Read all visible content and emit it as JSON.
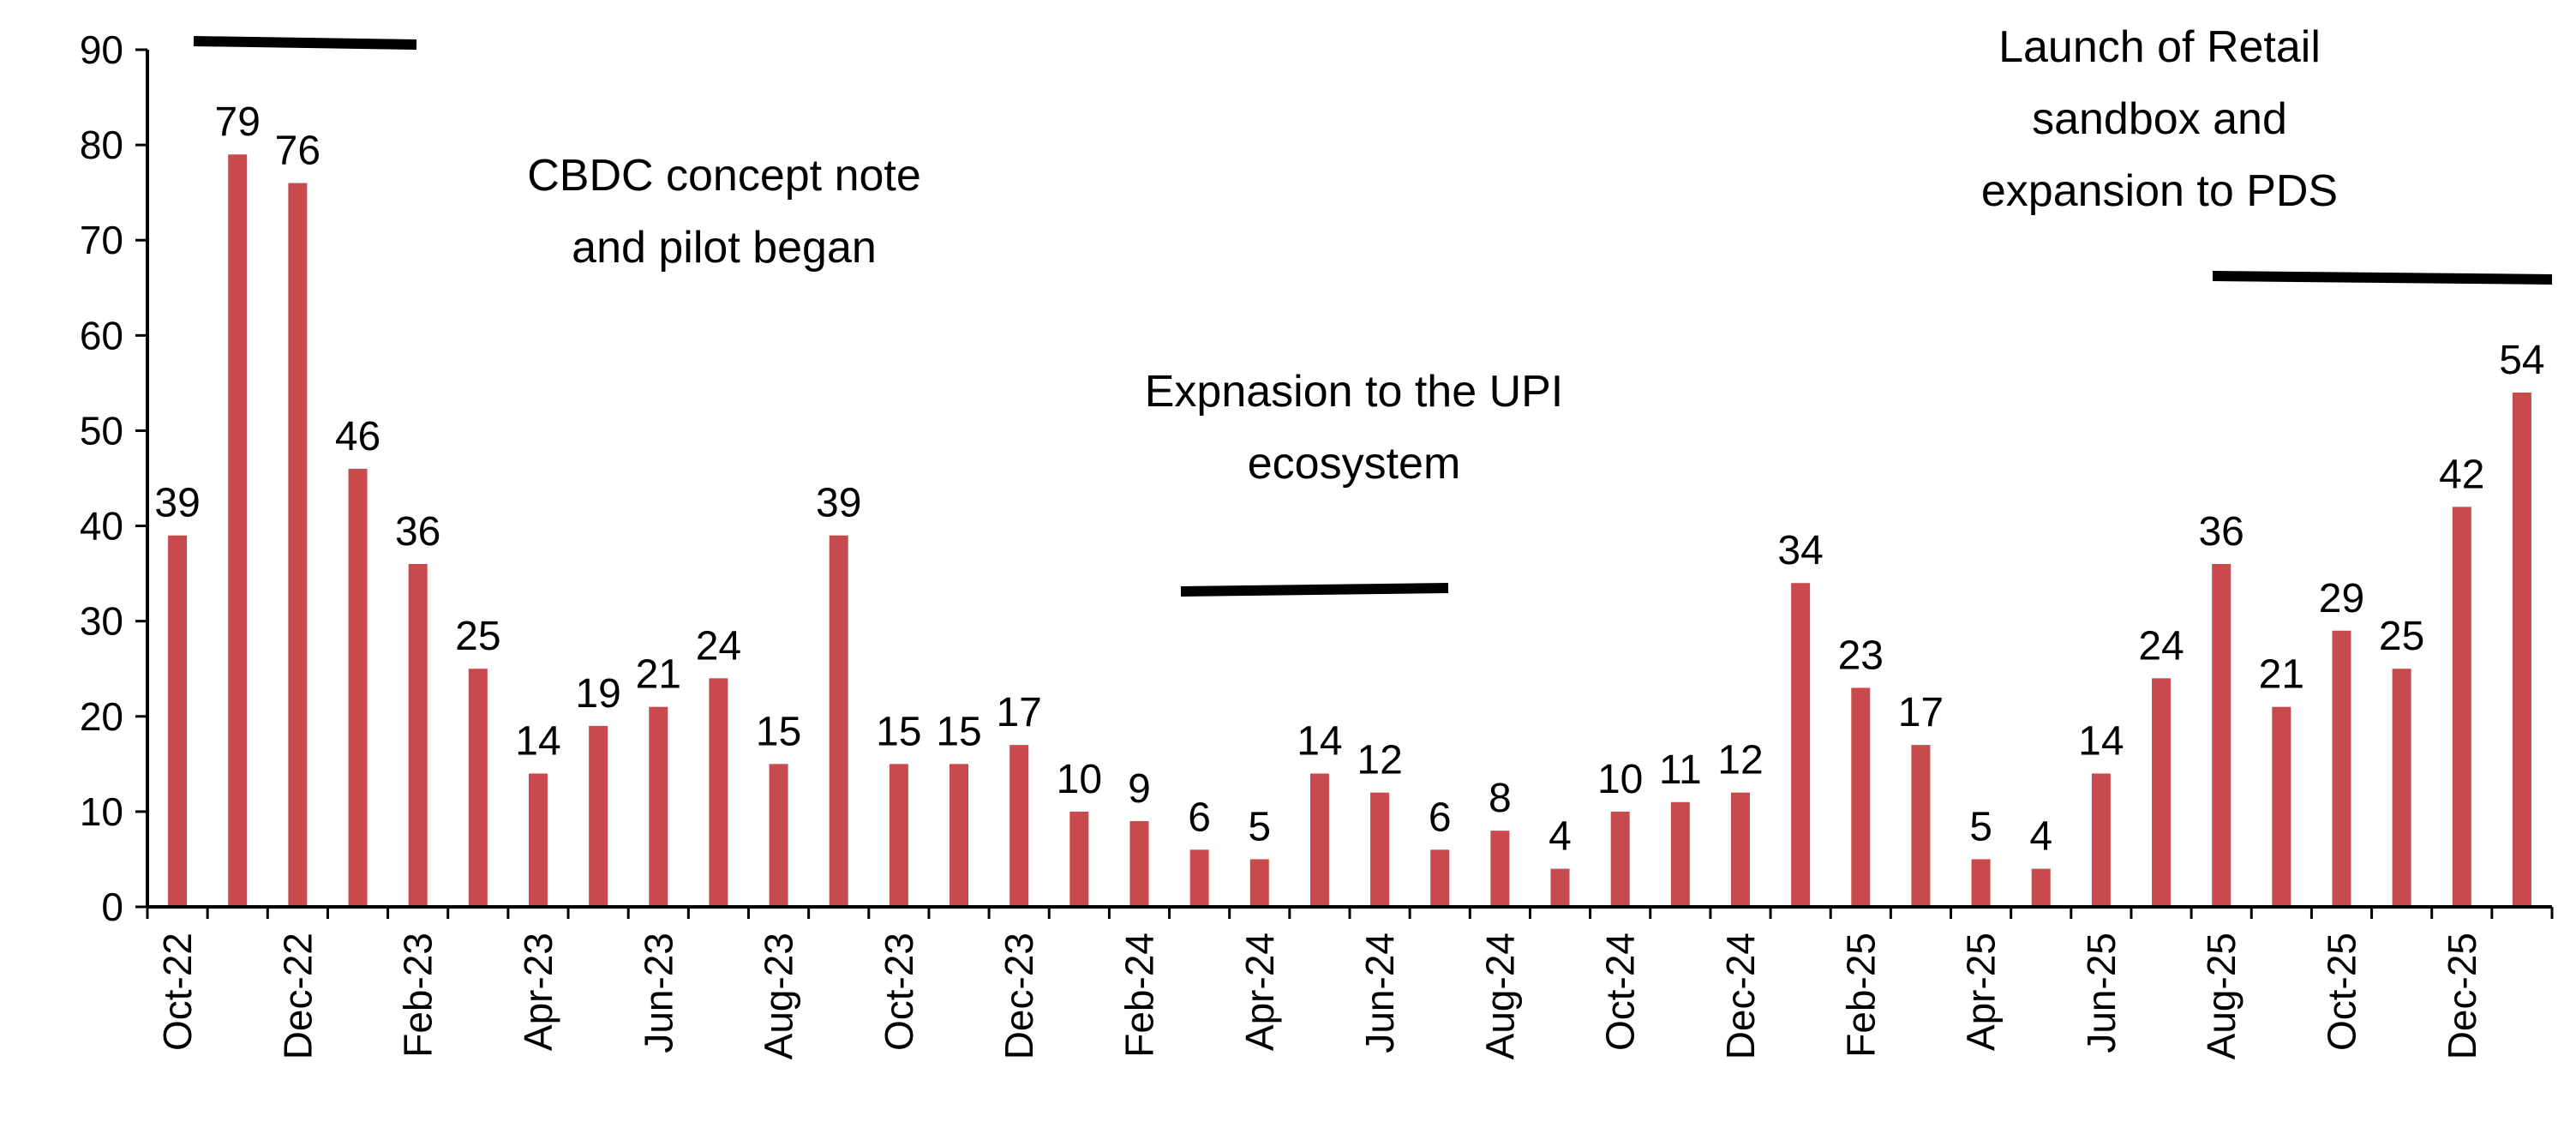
{
  "chart_data": {
    "type": "bar",
    "title": "",
    "xlabel": "",
    "ylabel": "",
    "ylim": [
      0,
      90
    ],
    "yticks": [
      0,
      10,
      20,
      30,
      40,
      50,
      60,
      70,
      80,
      90
    ],
    "grid": false,
    "legend": "none",
    "bar_color": "#c94a4d",
    "categories": [
      "Oct-22",
      "Nov-22",
      "Dec-22",
      "Jan-23",
      "Feb-23",
      "Mar-23",
      "Apr-23",
      "May-23",
      "Jun-23",
      "Jul-23",
      "Aug-23",
      "Sep-23",
      "Oct-23",
      "Nov-23",
      "Dec-23",
      "Jan-24",
      "Feb-24",
      "Mar-24",
      "Apr-24",
      "May-24",
      "Jun-24",
      "Jul-24",
      "Aug-24",
      "Sep-24",
      "Oct-24",
      "Nov-24",
      "Dec-24",
      "Jan-25",
      "Feb-25",
      "Mar-25",
      "Apr-25",
      "May-25",
      "Jun-25",
      "Jul-25",
      "Aug-25",
      "Sep-25",
      "Oct-25",
      "Nov-25",
      "Dec-25",
      "Jan-26"
    ],
    "x_tick_labels": [
      "Oct-22",
      "",
      "Dec-22",
      "",
      "Feb-23",
      "",
      "Apr-23",
      "",
      "Jun-23",
      "",
      "Aug-23",
      "",
      "Oct-23",
      "",
      "Dec-23",
      "",
      "Feb-24",
      "",
      "Apr-24",
      "",
      "Jun-24",
      "",
      "Aug-24",
      "",
      "Oct-24",
      "",
      "Dec-24",
      "",
      "Feb-25",
      "",
      "Apr-25",
      "",
      "Jun-25",
      "",
      "Aug-25",
      "",
      "Oct-25",
      "",
      "Dec-25",
      ""
    ],
    "values": [
      39,
      79,
      76,
      46,
      36,
      25,
      14,
      19,
      21,
      24,
      15,
      39,
      15,
      15,
      17,
      10,
      9,
      6,
      5,
      14,
      12,
      6,
      8,
      4,
      10,
      11,
      12,
      34,
      23,
      17,
      5,
      4,
      14,
      24,
      36,
      21,
      29,
      25,
      42,
      54
    ],
    "annotations": [
      {
        "lines": [
          "CBDC concept note",
          "and pilot began"
        ],
        "period": "Nov-22 to Feb-23"
      },
      {
        "lines": [
          "Expnasion to the UPI",
          "ecosystem"
        ],
        "period": "Apr-24 to Aug-24"
      },
      {
        "lines": [
          "Launch of Retail",
          "sandbox and",
          "expansion to PDS"
        ],
        "period": "Nov-25 to Jan-26"
      }
    ]
  }
}
